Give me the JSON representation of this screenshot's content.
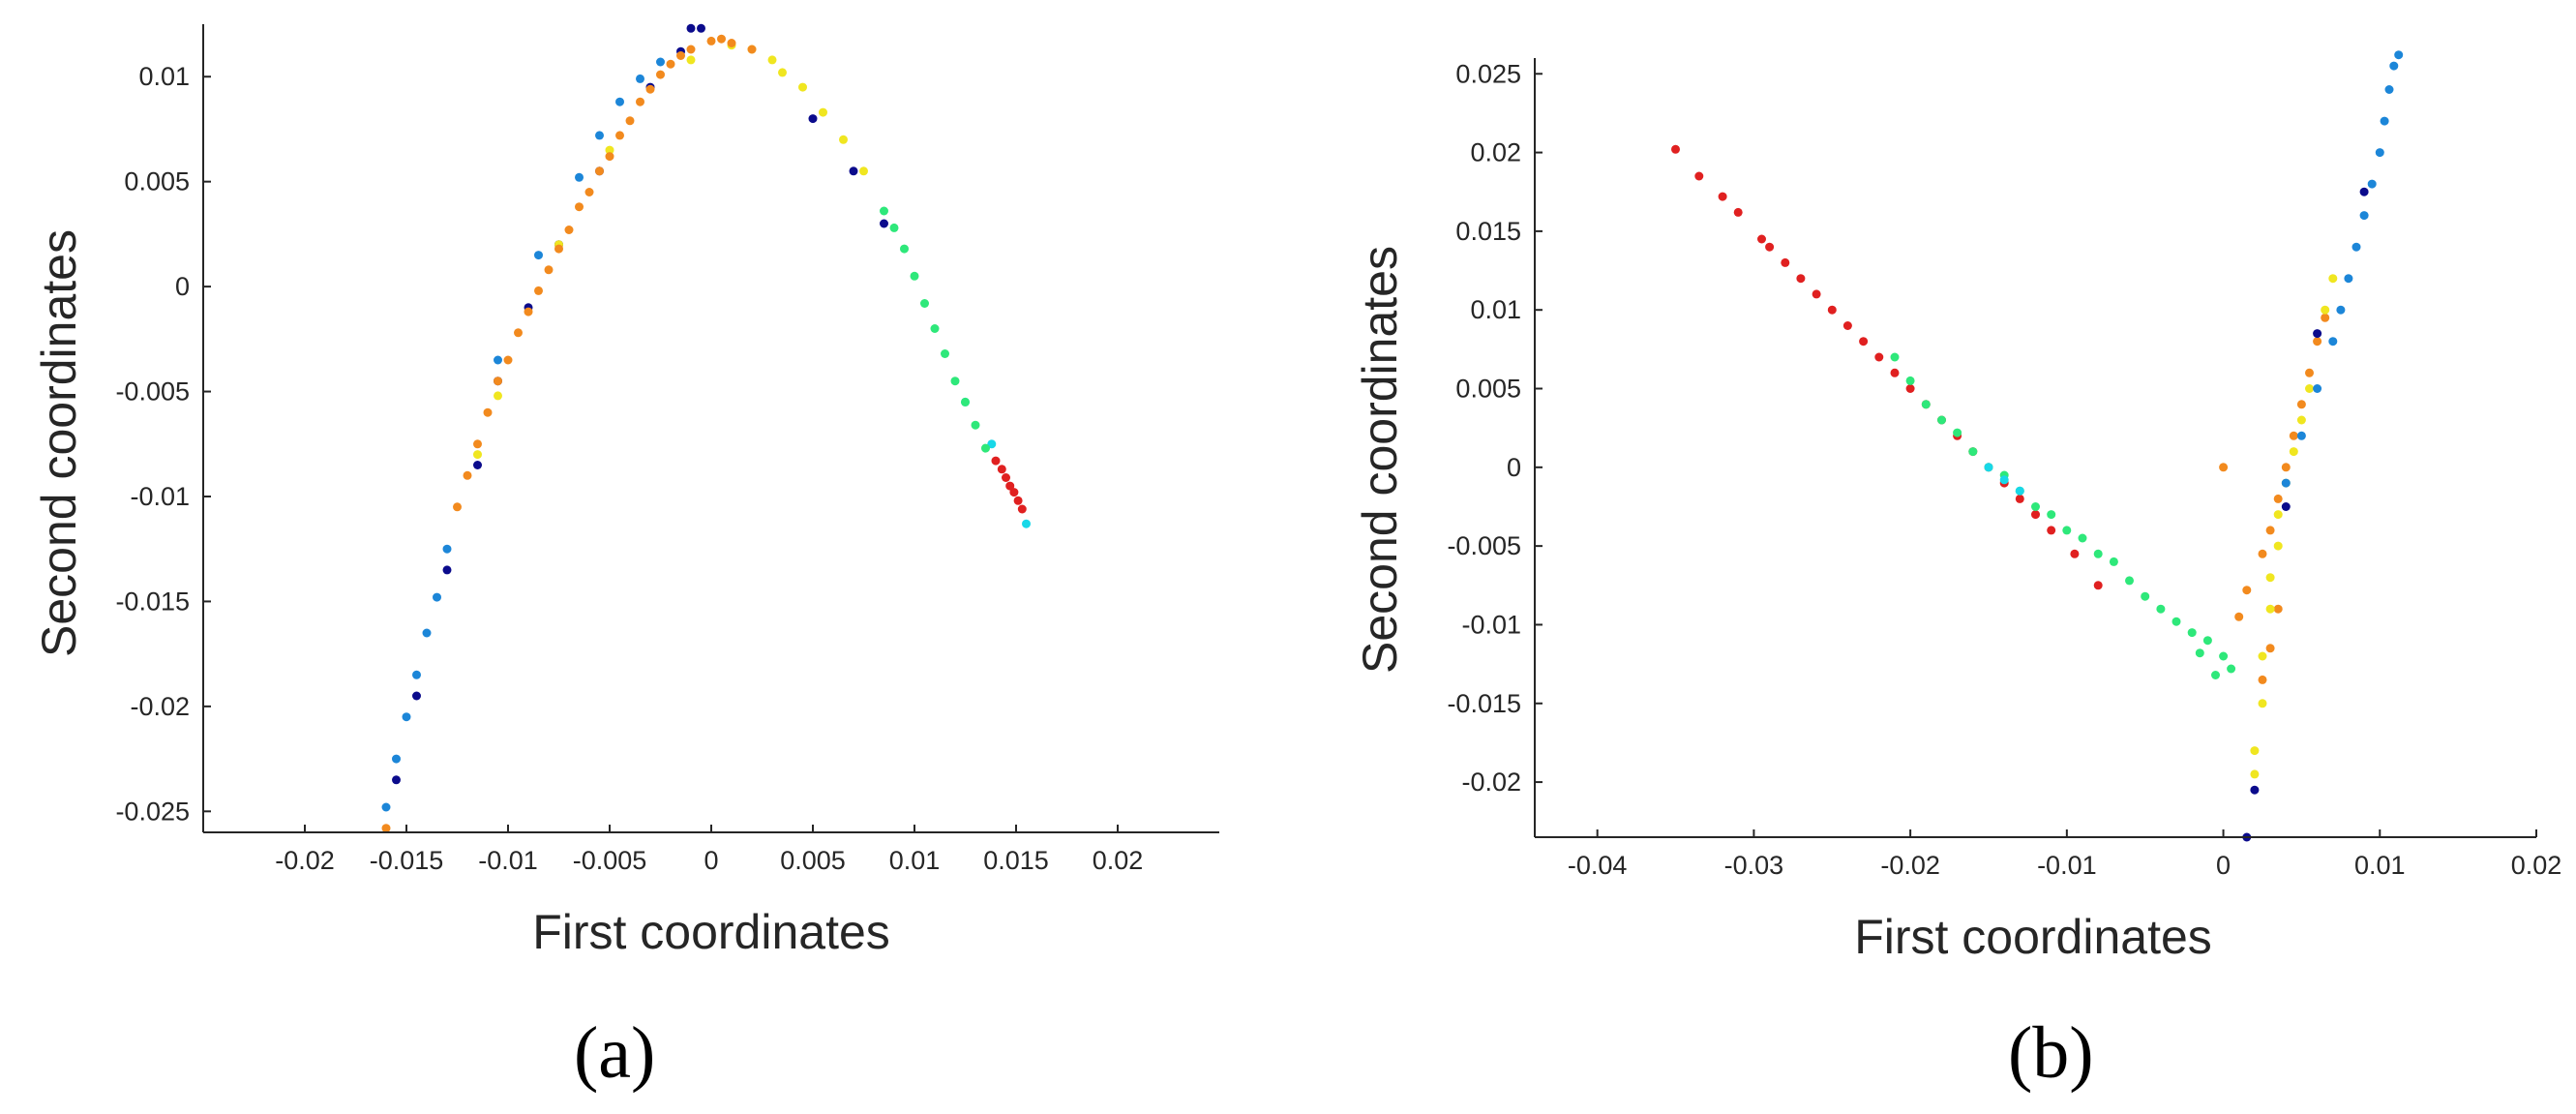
{
  "chart_data": [
    {
      "type": "scatter",
      "panel_label": "(a)",
      "xlabel": "First coordinates",
      "ylabel": "Second coordinates",
      "xlim": [
        -0.025,
        0.025
      ],
      "ylim": [
        -0.026,
        0.0125
      ],
      "xticks": [
        -0.02,
        -0.015,
        -0.01,
        -0.005,
        0,
        0.005,
        0.01,
        0.015,
        0.02
      ],
      "yticks": [
        -0.025,
        -0.02,
        -0.015,
        -0.01,
        -0.005,
        0,
        0.005,
        0.01
      ],
      "xtick_labels": [
        "-0.02",
        "-0.015",
        "-0.01",
        "-0.005",
        "0",
        "0.005",
        "0.01",
        "0.015",
        "0.02"
      ],
      "ytick_labels": [
        "-0.025",
        "-0.02",
        "-0.015",
        "-0.01",
        "-0.005",
        "0",
        "0.005",
        "0.01"
      ],
      "grid": false,
      "series": [
        {
          "color": "#0b0b8c",
          "points": [
            [
              -0.0155,
              -0.0235
            ],
            [
              -0.0145,
              -0.0195
            ],
            [
              -0.013,
              -0.0135
            ],
            [
              -0.0115,
              -0.0085
            ],
            [
              -0.0105,
              -0.0045
            ],
            [
              -0.009,
              -0.001
            ],
            [
              -0.0075,
              0.002
            ],
            [
              -0.0055,
              0.0055
            ],
            [
              -0.003,
              0.0095
            ],
            [
              -0.0015,
              0.0112
            ],
            [
              -0.001,
              0.0123
            ],
            [
              -0.0005,
              0.0123
            ],
            [
              0.0085,
              0.003
            ],
            [
              0.007,
              0.0055
            ],
            [
              0.005,
              0.008
            ]
          ]
        },
        {
          "color": "#1c86d8",
          "points": [
            [
              -0.016,
              -0.0248
            ],
            [
              -0.0155,
              -0.0225
            ],
            [
              -0.015,
              -0.0205
            ],
            [
              -0.0145,
              -0.0185
            ],
            [
              -0.014,
              -0.0165
            ],
            [
              -0.0135,
              -0.0148
            ],
            [
              -0.013,
              -0.0125
            ],
            [
              -0.0105,
              -0.0035
            ],
            [
              -0.0085,
              0.0015
            ],
            [
              -0.0065,
              0.0052
            ],
            [
              -0.0055,
              0.0072
            ],
            [
              -0.0045,
              0.0088
            ],
            [
              -0.0035,
              0.0099
            ],
            [
              -0.0025,
              0.0107
            ]
          ]
        },
        {
          "color": "#18d8e8",
          "points": [
            [
              0.0155,
              -0.0113
            ],
            [
              0.0138,
              -0.0075
            ],
            [
              0.0125,
              -0.0055
            ]
          ]
        },
        {
          "color": "#2ee87a",
          "points": [
            [
              0.0095,
              0.0018
            ],
            [
              0.01,
              0.0005
            ],
            [
              0.0105,
              -0.0008
            ],
            [
              0.011,
              -0.002
            ],
            [
              0.0115,
              -0.0032
            ],
            [
              0.012,
              -0.0045
            ],
            [
              0.0125,
              -0.0055
            ],
            [
              0.013,
              -0.0066
            ],
            [
              0.0135,
              -0.0077
            ],
            [
              0.009,
              0.0028
            ],
            [
              0.0085,
              0.0036
            ]
          ]
        },
        {
          "color": "#f0e620",
          "points": [
            [
              -0.0115,
              -0.008
            ],
            [
              -0.0105,
              -0.0052
            ],
            [
              -0.0075,
              0.002
            ],
            [
              -0.005,
              0.0065
            ],
            [
              -0.001,
              0.0108
            ],
            [
              0.001,
              0.0115
            ],
            [
              0.002,
              0.0113
            ],
            [
              0.003,
              0.0108
            ],
            [
              0.0045,
              0.0095
            ],
            [
              0.0055,
              0.0083
            ],
            [
              0.0065,
              0.007
            ],
            [
              0.0075,
              0.0055
            ],
            [
              0.0035,
              0.0102
            ]
          ]
        },
        {
          "color": "#f28a1e",
          "points": [
            [
              -0.016,
              -0.0258
            ],
            [
              -0.0125,
              -0.0105
            ],
            [
              -0.012,
              -0.009
            ],
            [
              -0.0115,
              -0.0075
            ],
            [
              -0.011,
              -0.006
            ],
            [
              -0.0105,
              -0.0045
            ],
            [
              -0.01,
              -0.0035
            ],
            [
              -0.0095,
              -0.0022
            ],
            [
              -0.009,
              -0.0012
            ],
            [
              -0.0085,
              -0.0002
            ],
            [
              -0.008,
              0.0008
            ],
            [
              -0.0075,
              0.0018
            ],
            [
              -0.007,
              0.0027
            ],
            [
              -0.0065,
              0.0038
            ],
            [
              -0.006,
              0.0045
            ],
            [
              -0.0055,
              0.0055
            ],
            [
              -0.005,
              0.0062
            ],
            [
              -0.0045,
              0.0072
            ],
            [
              -0.004,
              0.0079
            ],
            [
              -0.0035,
              0.0088
            ],
            [
              -0.003,
              0.0094
            ],
            [
              -0.0025,
              0.0101
            ],
            [
              -0.002,
              0.0106
            ],
            [
              -0.001,
              0.0113
            ],
            [
              0.0,
              0.0117
            ],
            [
              0.001,
              0.0116
            ],
            [
              0.002,
              0.0113
            ],
            [
              0.0005,
              0.0118
            ],
            [
              -0.0015,
              0.011
            ]
          ]
        },
        {
          "color": "#e02020",
          "points": [
            [
              0.014,
              -0.0083
            ],
            [
              0.0143,
              -0.0087
            ],
            [
              0.0145,
              -0.0091
            ],
            [
              0.0147,
              -0.0095
            ],
            [
              0.0149,
              -0.0098
            ],
            [
              0.0151,
              -0.0102
            ],
            [
              0.0153,
              -0.0106
            ]
          ]
        }
      ]
    },
    {
      "type": "scatter",
      "panel_label": "(b)",
      "xlabel": "First coordinates",
      "ylabel": "Second coordinates",
      "xlim": [
        -0.044,
        0.02
      ],
      "ylim": [
        -0.0235,
        0.026
      ],
      "xticks": [
        -0.04,
        -0.03,
        -0.02,
        -0.01,
        0,
        0.01,
        0.02
      ],
      "yticks": [
        -0.02,
        -0.015,
        -0.01,
        -0.005,
        0,
        0.005,
        0.01,
        0.015,
        0.02,
        0.025
      ],
      "xtick_labels": [
        "-0.04",
        "-0.03",
        "-0.02",
        "-0.01",
        "0",
        "0.01",
        "0.02"
      ],
      "ytick_labels": [
        "-0.02",
        "-0.015",
        "-0.01",
        "-0.005",
        "0",
        "0.005",
        "0.01",
        "0.015",
        "0.02",
        "0.025"
      ],
      "grid": false,
      "series": [
        {
          "color": "#e02020",
          "points": [
            [
              -0.035,
              0.0202
            ],
            [
              -0.0335,
              0.0185
            ],
            [
              -0.032,
              0.0172
            ],
            [
              -0.031,
              0.0162
            ],
            [
              -0.0295,
              0.0145
            ],
            [
              -0.029,
              0.014
            ],
            [
              -0.028,
              0.013
            ],
            [
              -0.027,
              0.012
            ],
            [
              -0.026,
              0.011
            ],
            [
              -0.025,
              0.01
            ],
            [
              -0.024,
              0.009
            ],
            [
              -0.023,
              0.008
            ],
            [
              -0.022,
              0.007
            ],
            [
              -0.021,
              0.006
            ],
            [
              -0.02,
              0.005
            ],
            [
              -0.019,
              0.004
            ],
            [
              -0.018,
              0.003
            ],
            [
              -0.017,
              0.002
            ],
            [
              -0.016,
              0.001
            ],
            [
              -0.015,
              0.0
            ],
            [
              -0.014,
              -0.001
            ],
            [
              -0.013,
              -0.002
            ],
            [
              -0.012,
              -0.003
            ],
            [
              -0.011,
              -0.004
            ],
            [
              -0.0095,
              -0.0055
            ],
            [
              -0.008,
              -0.0075
            ]
          ]
        },
        {
          "color": "#2ee87a",
          "points": [
            [
              -0.021,
              0.007
            ],
            [
              -0.02,
              0.0055
            ],
            [
              -0.019,
              0.004
            ],
            [
              -0.018,
              0.003
            ],
            [
              -0.017,
              0.0022
            ],
            [
              -0.016,
              0.001
            ],
            [
              -0.015,
              0.0
            ],
            [
              -0.014,
              -0.0005
            ],
            [
              -0.013,
              -0.0015
            ],
            [
              -0.012,
              -0.0025
            ],
            [
              -0.011,
              -0.003
            ],
            [
              -0.01,
              -0.004
            ],
            [
              -0.009,
              -0.0045
            ],
            [
              -0.008,
              -0.0055
            ],
            [
              -0.007,
              -0.006
            ],
            [
              -0.006,
              -0.0072
            ],
            [
              -0.005,
              -0.0082
            ],
            [
              -0.004,
              -0.009
            ],
            [
              -0.003,
              -0.0098
            ],
            [
              -0.002,
              -0.0105
            ],
            [
              -0.001,
              -0.011
            ],
            [
              0.0,
              -0.012
            ],
            [
              0.0005,
              -0.0128
            ],
            [
              -0.0005,
              -0.0132
            ],
            [
              -0.0015,
              -0.0118
            ]
          ]
        },
        {
          "color": "#18d8e8",
          "points": [
            [
              -0.015,
              0.0
            ],
            [
              -0.014,
              -0.0008
            ],
            [
              -0.013,
              -0.0015
            ]
          ]
        },
        {
          "color": "#f28a1e",
          "points": [
            [
              0.0,
              0.0
            ],
            [
              0.0015,
              -0.0078
            ],
            [
              0.0025,
              -0.0055
            ],
            [
              0.003,
              -0.004
            ],
            [
              0.0035,
              -0.002
            ],
            [
              0.004,
              0.0
            ],
            [
              0.0045,
              0.002
            ],
            [
              0.005,
              0.004
            ],
            [
              0.0055,
              0.006
            ],
            [
              0.006,
              0.008
            ],
            [
              0.0035,
              -0.009
            ],
            [
              0.003,
              -0.0115
            ],
            [
              0.0025,
              -0.0135
            ],
            [
              0.0065,
              0.0095
            ],
            [
              0.001,
              -0.0095
            ]
          ]
        },
        {
          "color": "#f0e620",
          "points": [
            [
              0.002,
              -0.018
            ],
            [
              0.0025,
              -0.015
            ],
            [
              0.0025,
              -0.012
            ],
            [
              0.003,
              -0.009
            ],
            [
              0.003,
              -0.007
            ],
            [
              0.0035,
              -0.005
            ],
            [
              0.0035,
              -0.003
            ],
            [
              0.004,
              -0.001
            ],
            [
              0.0045,
              0.001
            ],
            [
              0.005,
              0.003
            ],
            [
              0.0055,
              0.005
            ],
            [
              0.002,
              -0.0195
            ],
            [
              0.0065,
              0.01
            ],
            [
              0.007,
              0.012
            ]
          ]
        },
        {
          "color": "#1c86d8",
          "points": [
            [
              0.005,
              0.002
            ],
            [
              0.006,
              0.005
            ],
            [
              0.007,
              0.008
            ],
            [
              0.0075,
              0.01
            ],
            [
              0.008,
              0.012
            ],
            [
              0.0085,
              0.014
            ],
            [
              0.009,
              0.016
            ],
            [
              0.0095,
              0.018
            ],
            [
              0.01,
              0.02
            ],
            [
              0.0103,
              0.022
            ],
            [
              0.0106,
              0.024
            ],
            [
              0.0109,
              0.0255
            ],
            [
              0.0112,
              0.0262
            ],
            [
              0.004,
              -0.001
            ]
          ]
        },
        {
          "color": "#0b0b8c",
          "points": [
            [
              0.0015,
              -0.0235
            ],
            [
              0.002,
              -0.0205
            ],
            [
              0.004,
              -0.0025
            ],
            [
              0.006,
              0.0085
            ],
            [
              0.009,
              0.0175
            ]
          ]
        }
      ]
    }
  ]
}
